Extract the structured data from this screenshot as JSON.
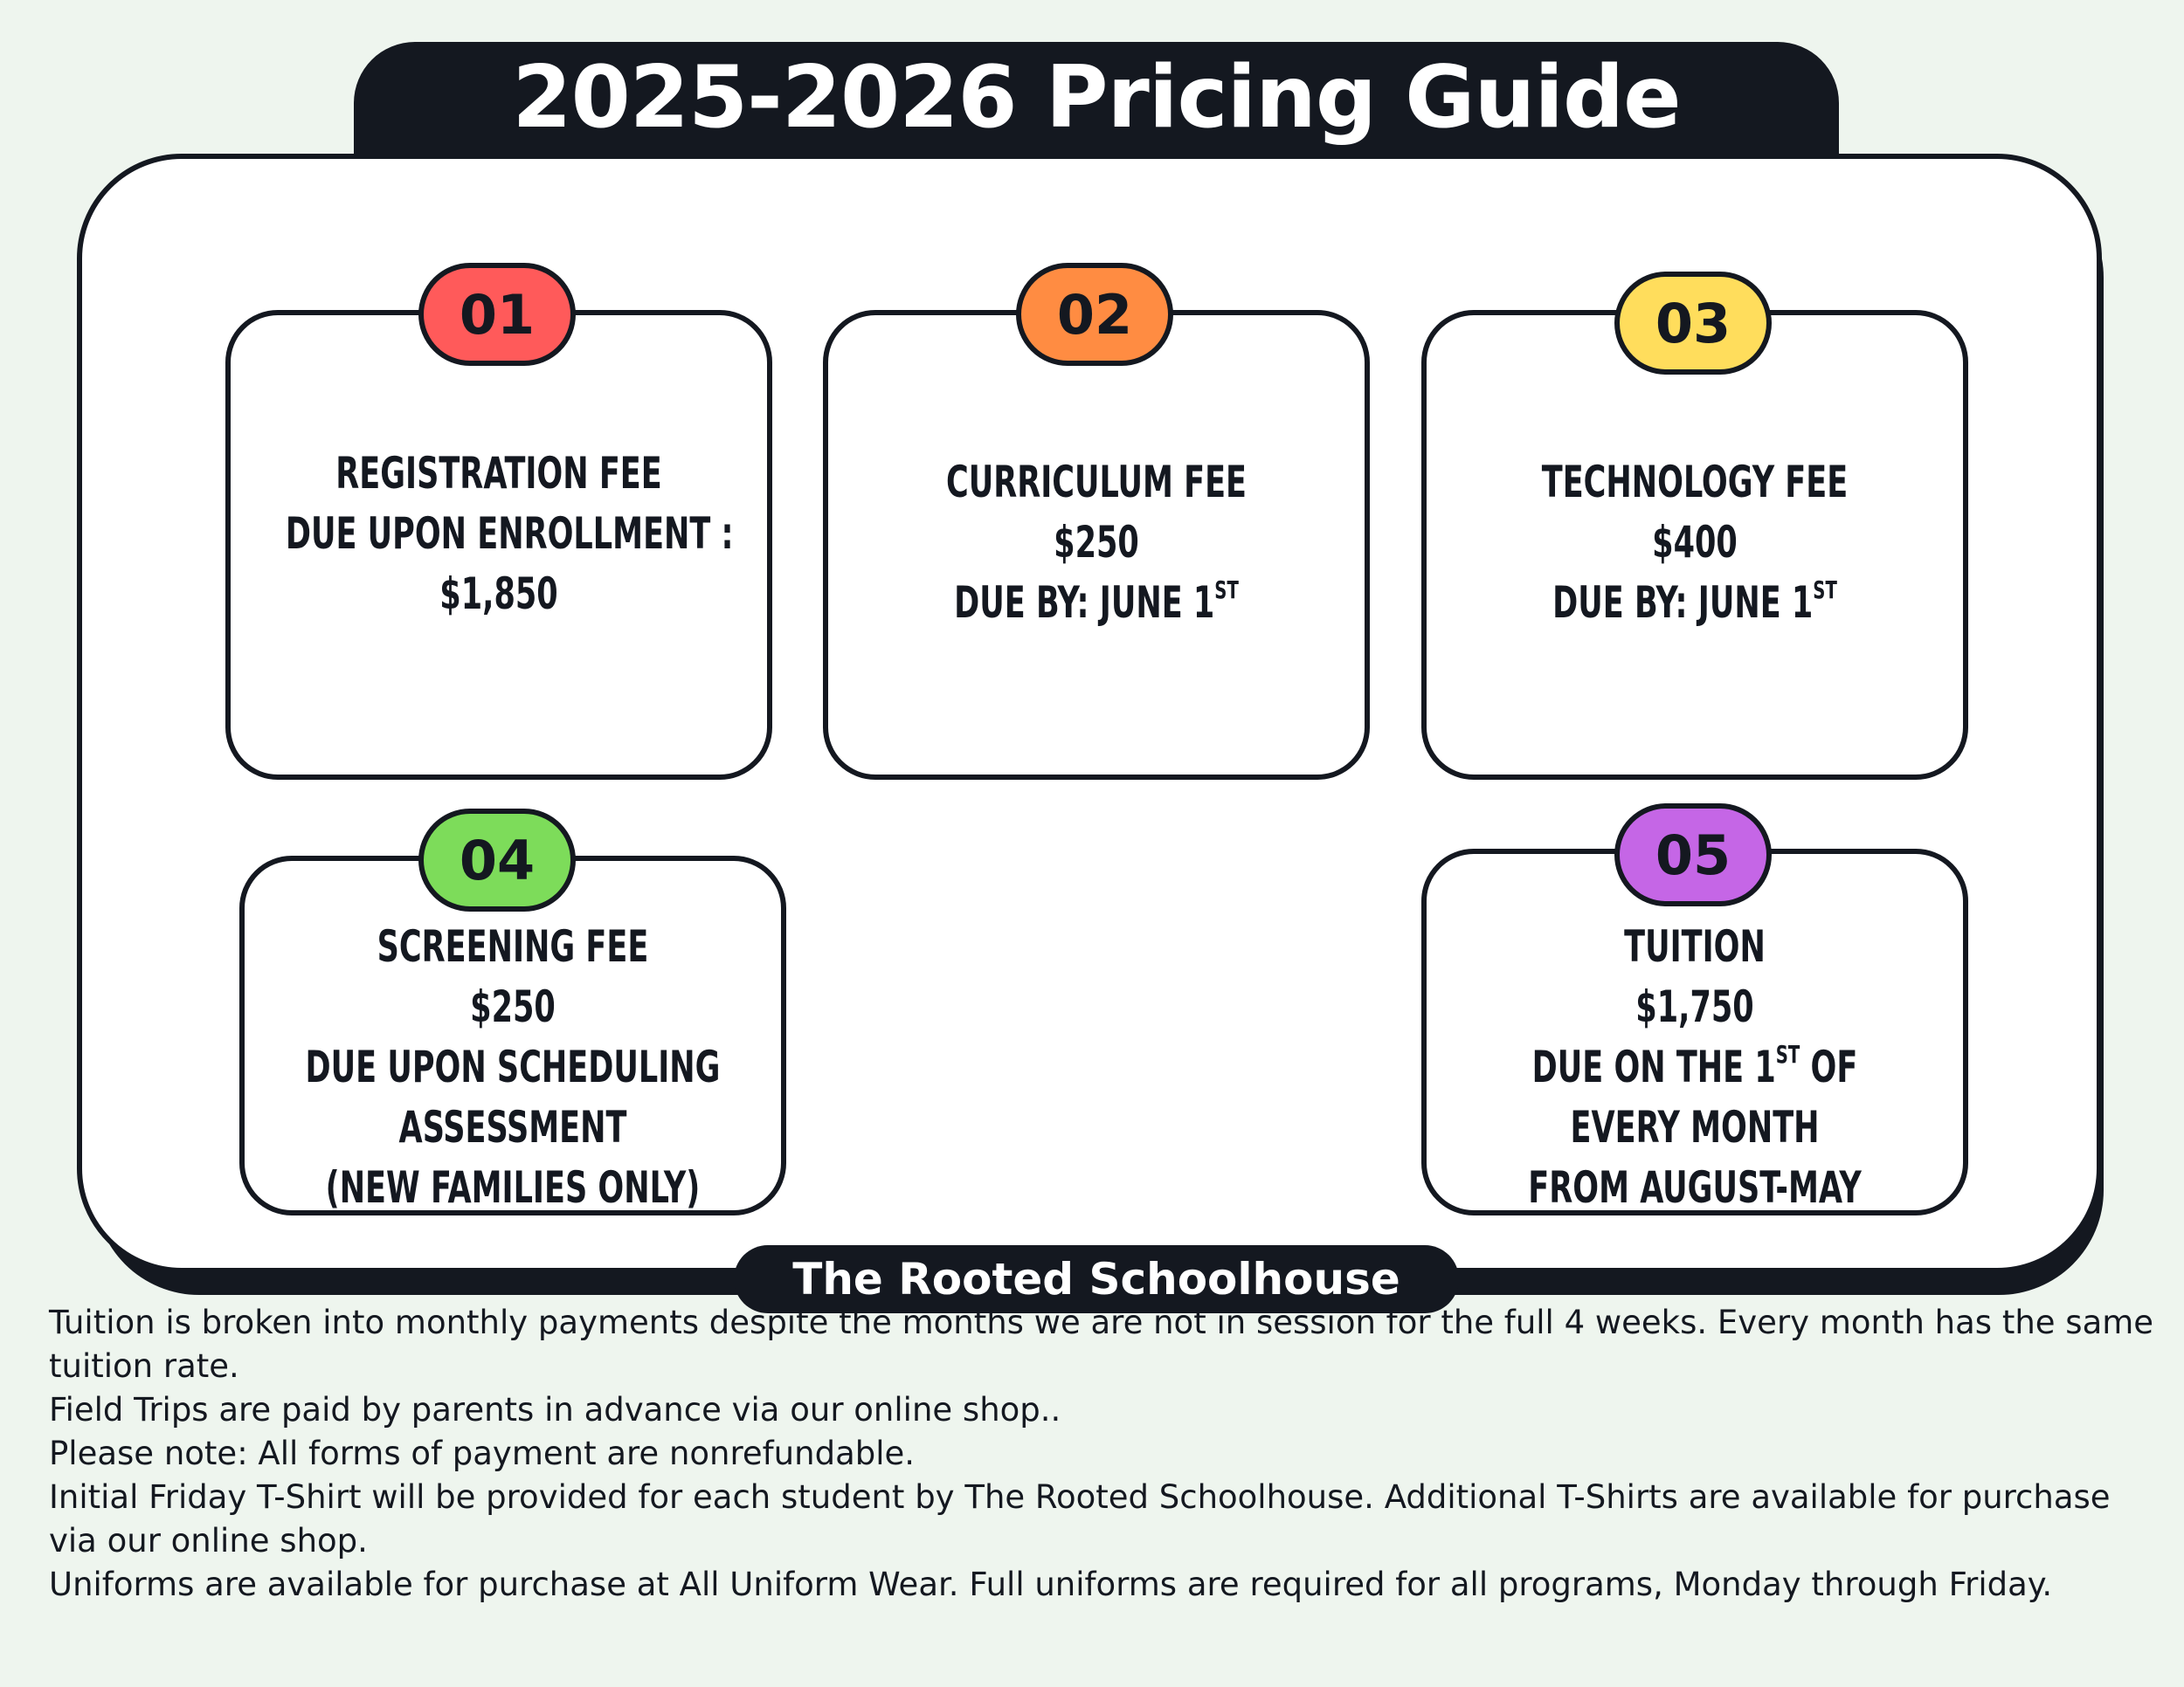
{
  "title": "2025-2026 Pricing Guide",
  "school_name": "The Rooted Schoolhouse",
  "colors": {
    "dark": "#141820",
    "badge_01": "#ff5a5a",
    "badge_02": "#ff8c42",
    "badge_03": "#ffdd5c",
    "badge_04": "#7ddc5a",
    "badge_05": "#c566e6",
    "background": "#eef5ee"
  },
  "cards": [
    {
      "number": "01",
      "lines": [
        "REGISTRATION FEE",
        "DUE UPON ENROLLMENT :",
        "$1,850"
      ]
    },
    {
      "number": "02",
      "lines": [
        "CURRICULUM FEE",
        "$250"
      ],
      "due_prefix": "DUE BY: JUNE 1",
      "due_sup": "ST"
    },
    {
      "number": "03",
      "lines": [
        "TECHNOLOGY FEE",
        "$400"
      ],
      "due_prefix": "DUE BY: JUNE 1",
      "due_sup": "ST"
    },
    {
      "number": "04",
      "lines": [
        "SCREENING FEE",
        "$250",
        "DUE UPON SCHEDULING",
        "ASSESSMENT",
        "(NEW FAMILIES ONLY)"
      ]
    },
    {
      "number": "05",
      "lines": [
        "TUITION",
        "$1,750"
      ],
      "due_prefix": "DUE ON THE 1",
      "due_sup": "ST",
      "due_suffix": " OF",
      "extra_lines": [
        "EVERY MONTH",
        "FROM  AUGUST-MAY"
      ]
    }
  ],
  "notes": [
    "Tuition is broken into monthly payments despite the months we are not in session for the full 4 weeks. Every month has the same tuition rate.",
    "Field Trips are paid by parents in advance via our online shop..",
    "Please note: All forms of payment are nonrefundable.",
    "Initial Friday T-Shirt will be provided for each student by The Rooted Schoolhouse. Additional T-Shirts are available for purchase via our online shop.",
    "Uniforms are available for purchase at All Uniform Wear. Full uniforms are required for all programs, Monday through Friday."
  ]
}
